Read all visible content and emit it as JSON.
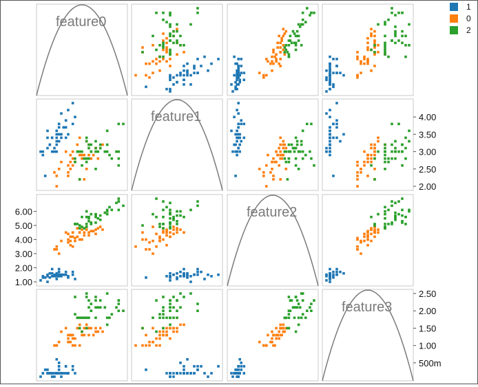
{
  "chart_data": {
    "type": "scatter",
    "variables": [
      "feature0",
      "feature1",
      "feature2",
      "feature3"
    ],
    "ranges": [
      [
        4.3,
        7.9
      ],
      [
        2.0,
        4.4
      ],
      [
        1.0,
        6.9
      ],
      [
        0.1,
        2.5
      ]
    ],
    "tick_labels": {
      "feature1": [
        "2.00",
        "2.50",
        "3.00",
        "3.50",
        "4.00"
      ],
      "feature2": [
        "1.00",
        "2.00",
        "3.00",
        "4.00",
        "5.00",
        "6.00"
      ],
      "feature3": [
        "500m",
        "1.00",
        "1.50",
        "2.00",
        "2.50"
      ]
    },
    "legend": {
      "position": "top-right",
      "entries": [
        {
          "label": "1",
          "color": "#1f77b4"
        },
        {
          "label": "0",
          "color": "#ff7f0e"
        },
        {
          "label": "2",
          "color": "#2ca02c"
        }
      ]
    },
    "series": [
      {
        "class": "1",
        "color": "#1f77b4",
        "points": [
          [
            5.1,
            3.5,
            1.4,
            0.2
          ],
          [
            4.9,
            3.0,
            1.4,
            0.2
          ],
          [
            4.7,
            3.2,
            1.3,
            0.2
          ],
          [
            4.6,
            3.1,
            1.5,
            0.2
          ],
          [
            5.0,
            3.6,
            1.4,
            0.2
          ],
          [
            5.4,
            3.9,
            1.7,
            0.4
          ],
          [
            4.6,
            3.4,
            1.4,
            0.3
          ],
          [
            5.0,
            3.4,
            1.5,
            0.2
          ],
          [
            4.4,
            2.9,
            1.4,
            0.2
          ],
          [
            4.9,
            3.1,
            1.5,
            0.1
          ],
          [
            5.4,
            3.7,
            1.5,
            0.2
          ],
          [
            4.8,
            3.4,
            1.6,
            0.2
          ],
          [
            4.8,
            3.0,
            1.4,
            0.1
          ],
          [
            4.3,
            3.0,
            1.1,
            0.1
          ],
          [
            5.8,
            4.0,
            1.2,
            0.2
          ],
          [
            5.7,
            4.4,
            1.5,
            0.4
          ],
          [
            5.1,
            3.8,
            1.5,
            0.3
          ],
          [
            5.7,
            3.8,
            1.7,
            0.3
          ],
          [
            5.1,
            3.7,
            1.5,
            0.4
          ],
          [
            4.6,
            3.6,
            1.0,
            0.2
          ],
          [
            5.1,
            3.3,
            1.7,
            0.5
          ],
          [
            4.8,
            3.4,
            1.9,
            0.2
          ],
          [
            5.0,
            3.0,
            1.6,
            0.2
          ],
          [
            5.2,
            3.5,
            1.5,
            0.2
          ],
          [
            5.2,
            3.4,
            1.4,
            0.2
          ],
          [
            4.7,
            3.2,
            1.6,
            0.2
          ],
          [
            5.4,
            3.4,
            1.5,
            0.4
          ],
          [
            5.2,
            4.1,
            1.5,
            0.1
          ],
          [
            5.5,
            4.2,
            1.4,
            0.2
          ],
          [
            5.0,
            3.2,
            1.2,
            0.2
          ],
          [
            5.5,
            3.5,
            1.3,
            0.2
          ],
          [
            4.4,
            3.0,
            1.3,
            0.2
          ],
          [
            4.5,
            2.3,
            1.3,
            0.3
          ],
          [
            5.0,
            3.5,
            1.6,
            0.6
          ],
          [
            5.1,
            3.8,
            1.9,
            0.4
          ],
          [
            5.3,
            3.7,
            1.5,
            0.2
          ],
          [
            5.0,
            3.3,
            1.4,
            0.2
          ]
        ]
      },
      {
        "class": "0",
        "color": "#ff7f0e",
        "points": [
          [
            7.0,
            3.2,
            4.7,
            1.4
          ],
          [
            6.4,
            3.2,
            4.5,
            1.5
          ],
          [
            6.9,
            3.1,
            4.9,
            1.5
          ],
          [
            5.5,
            2.3,
            4.0,
            1.3
          ],
          [
            6.5,
            2.8,
            4.6,
            1.5
          ],
          [
            5.7,
            2.8,
            4.5,
            1.3
          ],
          [
            6.3,
            3.3,
            4.7,
            1.6
          ],
          [
            4.9,
            2.4,
            3.3,
            1.0
          ],
          [
            6.6,
            2.9,
            4.6,
            1.3
          ],
          [
            5.2,
            2.7,
            3.9,
            1.4
          ],
          [
            5.0,
            2.0,
            3.5,
            1.0
          ],
          [
            5.9,
            3.0,
            4.2,
            1.5
          ],
          [
            6.0,
            2.2,
            4.0,
            1.0
          ],
          [
            6.1,
            2.9,
            4.7,
            1.4
          ],
          [
            5.6,
            2.9,
            3.6,
            1.3
          ],
          [
            6.7,
            3.1,
            4.4,
            1.4
          ],
          [
            5.8,
            2.7,
            4.1,
            1.0
          ],
          [
            6.2,
            2.2,
            4.5,
            1.5
          ],
          [
            5.6,
            2.5,
            3.9,
            1.1
          ],
          [
            5.9,
            3.2,
            4.8,
            1.8
          ],
          [
            6.1,
            2.8,
            4.0,
            1.3
          ],
          [
            6.3,
            2.5,
            4.9,
            1.5
          ],
          [
            6.4,
            2.9,
            4.3,
            1.3
          ],
          [
            6.8,
            2.8,
            4.8,
            1.4
          ],
          [
            6.0,
            2.9,
            4.5,
            1.5
          ],
          [
            5.7,
            2.6,
            3.5,
            1.0
          ],
          [
            5.5,
            2.4,
            3.8,
            1.1
          ],
          [
            5.8,
            2.7,
            3.9,
            1.2
          ],
          [
            5.4,
            3.0,
            4.5,
            1.5
          ],
          [
            6.0,
            3.4,
            4.5,
            1.6
          ],
          [
            6.7,
            3.1,
            4.7,
            1.5
          ],
          [
            5.5,
            2.6,
            4.4,
            1.2
          ],
          [
            5.0,
            2.3,
            3.3,
            1.0
          ],
          [
            5.6,
            2.7,
            4.2,
            1.3
          ],
          [
            5.7,
            3.0,
            4.2,
            1.2
          ],
          [
            6.2,
            2.9,
            4.3,
            1.3
          ],
          [
            5.1,
            2.5,
            3.0,
            1.1
          ]
        ]
      },
      {
        "class": "2",
        "color": "#2ca02c",
        "points": [
          [
            6.3,
            3.3,
            6.0,
            2.5
          ],
          [
            7.1,
            3.0,
            5.9,
            2.1
          ],
          [
            6.5,
            3.0,
            5.8,
            2.2
          ],
          [
            7.6,
            3.0,
            6.6,
            2.1
          ],
          [
            7.3,
            2.9,
            6.3,
            1.8
          ],
          [
            6.7,
            2.5,
            5.8,
            1.8
          ],
          [
            7.2,
            3.6,
            6.1,
            2.5
          ],
          [
            6.5,
            3.2,
            5.1,
            2.0
          ],
          [
            6.8,
            3.0,
            5.5,
            2.1
          ],
          [
            5.8,
            2.8,
            5.1,
            2.4
          ],
          [
            6.4,
            3.2,
            5.3,
            2.3
          ],
          [
            7.7,
            3.8,
            6.7,
            2.2
          ],
          [
            7.7,
            2.6,
            6.9,
            2.3
          ],
          [
            6.0,
            2.2,
            5.0,
            1.5
          ],
          [
            6.9,
            3.2,
            5.7,
            2.3
          ],
          [
            7.7,
            2.8,
            6.7,
            2.0
          ],
          [
            6.3,
            2.7,
            4.9,
            1.8
          ],
          [
            6.7,
            3.3,
            5.7,
            2.1
          ],
          [
            7.2,
            3.2,
            6.0,
            1.8
          ],
          [
            6.2,
            2.8,
            4.8,
            1.8
          ],
          [
            6.1,
            3.0,
            4.9,
            1.8
          ],
          [
            6.4,
            2.8,
            5.6,
            2.1
          ],
          [
            7.2,
            3.0,
            5.8,
            1.6
          ],
          [
            7.4,
            2.8,
            6.1,
            1.9
          ],
          [
            7.9,
            3.8,
            6.4,
            2.0
          ],
          [
            6.3,
            2.8,
            5.1,
            1.5
          ],
          [
            6.1,
            2.6,
            5.6,
            1.4
          ],
          [
            7.7,
            3.0,
            6.1,
            2.3
          ],
          [
            6.3,
            3.4,
            5.6,
            2.4
          ],
          [
            6.4,
            3.1,
            5.5,
            1.8
          ],
          [
            6.0,
            3.0,
            4.8,
            1.8
          ],
          [
            6.9,
            3.1,
            5.4,
            2.1
          ],
          [
            6.7,
            3.1,
            5.6,
            2.4
          ],
          [
            5.8,
            2.7,
            5.1,
            1.9
          ],
          [
            6.7,
            3.0,
            5.2,
            2.3
          ],
          [
            6.5,
            3.0,
            5.2,
            2.0
          ],
          [
            5.9,
            3.0,
            5.1,
            1.8
          ]
        ]
      }
    ]
  }
}
